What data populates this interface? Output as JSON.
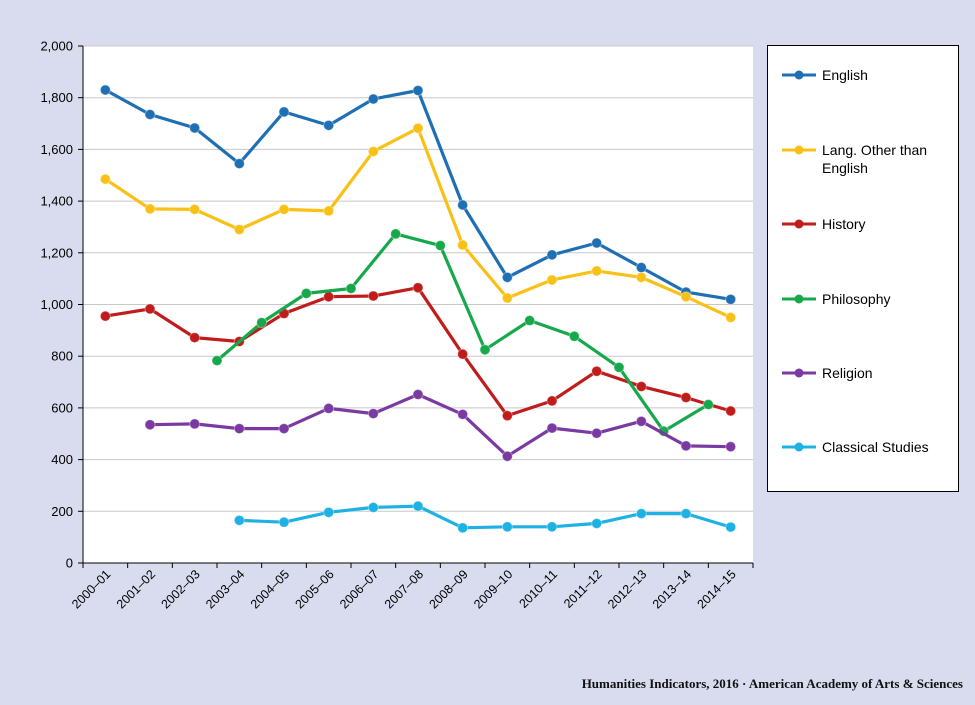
{
  "chart_data": {
    "type": "line",
    "categories": [
      "2000–01",
      "2001–02",
      "2002–03",
      "2003–04",
      "2004–05",
      "2005–06",
      "2006–07",
      "2007–08",
      "2008–09",
      "2009–10",
      "2010–11",
      "2011–12",
      "2012–13",
      "2013–14",
      "2014–15"
    ],
    "ylim": [
      0,
      2000
    ],
    "yticks": [
      0,
      200,
      400,
      600,
      800,
      1000,
      1200,
      1400,
      1600,
      1800,
      2000
    ],
    "ytick_labels": [
      "0",
      "200",
      "400",
      "600",
      "800",
      "1,000",
      "1,200",
      "1,400",
      "1,600",
      "1,800",
      "2,000"
    ],
    "grid": true,
    "legend_position": "right",
    "series": [
      {
        "name": "English",
        "color": "#1f6fb4",
        "points": [
          [
            0,
            1830
          ],
          [
            1,
            1735
          ],
          [
            2,
            1683
          ],
          [
            3,
            1545
          ],
          [
            4,
            1745
          ],
          [
            5,
            1693
          ],
          [
            6,
            1795
          ],
          [
            7,
            1828
          ],
          [
            8,
            1385
          ],
          [
            9,
            1105
          ],
          [
            10,
            1192
          ],
          [
            11,
            1238
          ],
          [
            12,
            1143
          ],
          [
            13,
            1048
          ],
          [
            14,
            1020
          ]
        ]
      },
      {
        "name": "Lang. Other than English",
        "color": "#f9c015",
        "points": [
          [
            0,
            1485
          ],
          [
            1,
            1370
          ],
          [
            2,
            1368
          ],
          [
            3,
            1290
          ],
          [
            4,
            1368
          ],
          [
            5,
            1362
          ],
          [
            6,
            1592
          ],
          [
            7,
            1682
          ],
          [
            8,
            1230
          ],
          [
            9,
            1025
          ],
          [
            10,
            1095
          ],
          [
            11,
            1130
          ],
          [
            12,
            1105
          ],
          [
            13,
            1030
          ],
          [
            14,
            950
          ]
        ]
      },
      {
        "name": "History",
        "color": "#c01c1c",
        "points": [
          [
            0,
            955
          ],
          [
            1,
            983
          ],
          [
            2,
            872
          ],
          [
            3,
            857
          ],
          [
            4,
            965
          ],
          [
            5,
            1030
          ],
          [
            6,
            1033
          ],
          [
            7,
            1065
          ],
          [
            8,
            808
          ],
          [
            9,
            570
          ],
          [
            10,
            627
          ],
          [
            11,
            742
          ],
          [
            12,
            683
          ],
          [
            13,
            640
          ],
          [
            14,
            588
          ]
        ]
      },
      {
        "name": "Philosophy",
        "color": "#17a84b",
        "points": [
          [
            2.5,
            783
          ],
          [
            3.5,
            930
          ],
          [
            4.5,
            1043
          ],
          [
            5.5,
            1062
          ],
          [
            6.5,
            1273
          ],
          [
            7.5,
            1228
          ],
          [
            8.5,
            825
          ],
          [
            9.5,
            938
          ],
          [
            10.5,
            877
          ],
          [
            11.5,
            757
          ],
          [
            12.5,
            510
          ],
          [
            13.5,
            613
          ]
        ]
      },
      {
        "name": "Religion",
        "color": "#7a3aa2",
        "points": [
          [
            1,
            535
          ],
          [
            2,
            538
          ],
          [
            3,
            520
          ],
          [
            4,
            520
          ],
          [
            5,
            598
          ],
          [
            6,
            578
          ],
          [
            7,
            652
          ],
          [
            8,
            575
          ],
          [
            9,
            413
          ],
          [
            10,
            522
          ],
          [
            11,
            502
          ],
          [
            12,
            548
          ],
          [
            13,
            453
          ],
          [
            14,
            450
          ]
        ]
      },
      {
        "name": "Classical Studies",
        "color": "#1eb1e4",
        "points": [
          [
            3,
            165
          ],
          [
            4,
            158
          ],
          [
            5,
            196
          ],
          [
            6,
            215
          ],
          [
            7,
            220
          ],
          [
            8,
            136
          ],
          [
            9,
            140
          ],
          [
            10,
            140
          ],
          [
            11,
            153
          ],
          [
            12,
            191
          ],
          [
            13,
            191
          ],
          [
            14,
            139
          ]
        ]
      }
    ]
  },
  "footer": "Humanities Indicators, 2016 · American Academy of Arts & Sciences"
}
